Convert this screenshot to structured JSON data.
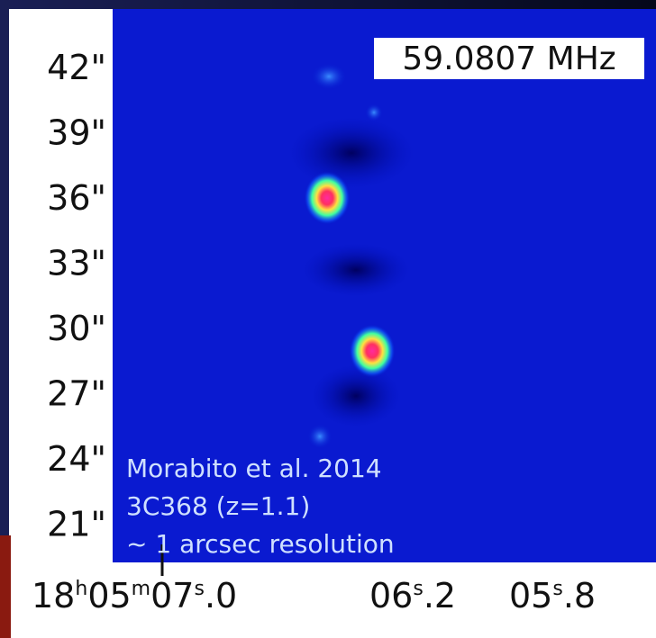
{
  "frequency_label": "59.0807 MHz",
  "y_axis": {
    "labels": [
      "42\"",
      "39\"",
      "36\"",
      "33\"",
      "30\"",
      "27\"",
      "24\"",
      "21\""
    ]
  },
  "x_axis": {
    "labels": [
      [
        "18",
        "h",
        "05",
        "m",
        "07",
        "s",
        ".0"
      ],
      [
        "06",
        "s",
        ".2"
      ],
      [
        "05",
        "s",
        ".8"
      ]
    ]
  },
  "annotation": {
    "lines": [
      "Morabito et al. 2014",
      "3C368 (z=1.1)",
      "~ 1 arcsec resolution"
    ]
  }
}
